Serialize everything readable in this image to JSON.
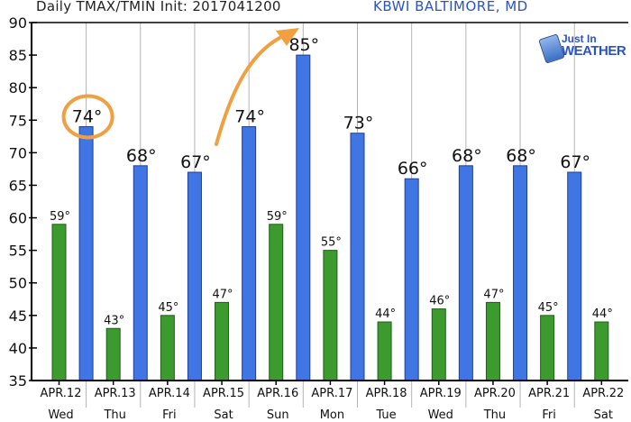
{
  "header": {
    "title": "Daily TMAX/TMIN Init: 2017041200",
    "station": "KBWI BALTIMORE, MD"
  },
  "logo": {
    "line1": "Just In",
    "line2": "WEATHER"
  },
  "colors": {
    "tmax": "#3f76e4",
    "tmin": "#3c9a2e",
    "annotation": "#f0a040",
    "station_text": "#2a52c9"
  },
  "chart_data": {
    "type": "bar",
    "title": "Daily TMAX/TMIN Init: 2017041200",
    "categories": [
      "APR.12",
      "APR.13",
      "APR.14",
      "APR.15",
      "APR.16",
      "APR.17",
      "APR.18",
      "APR.19",
      "APR.20",
      "APR.21",
      "APR.22"
    ],
    "day_labels": [
      "Wed",
      "Thu",
      "Fri",
      "Sat",
      "Sun",
      "Mon",
      "Tue",
      "Wed",
      "Thu",
      "Fri",
      "Sat"
    ],
    "tmin": [
      59,
      43,
      45,
      47,
      59,
      55,
      44,
      46,
      47,
      45,
      44
    ],
    "tmax": [
      74,
      68,
      67,
      74,
      85,
      73,
      66,
      68,
      68,
      67
    ],
    "tmin_labels": [
      "59°",
      "43°",
      "45°",
      "47°",
      "59°",
      "55°",
      "44°",
      "46°",
      "47°",
      "45°",
      "44°"
    ],
    "tmax_labels": [
      "74°",
      "68°",
      "67°",
      "74°",
      "85°",
      "73°",
      "66°",
      "68°",
      "68°",
      "67°"
    ],
    "ylim": [
      35,
      90
    ],
    "yticks": [
      35,
      40,
      45,
      50,
      55,
      60,
      65,
      70,
      75,
      80,
      85,
      90
    ],
    "grid": "vertical",
    "highlight": {
      "series": "tmax",
      "index": 0,
      "style": "circle"
    },
    "arrow_annotation": true
  }
}
